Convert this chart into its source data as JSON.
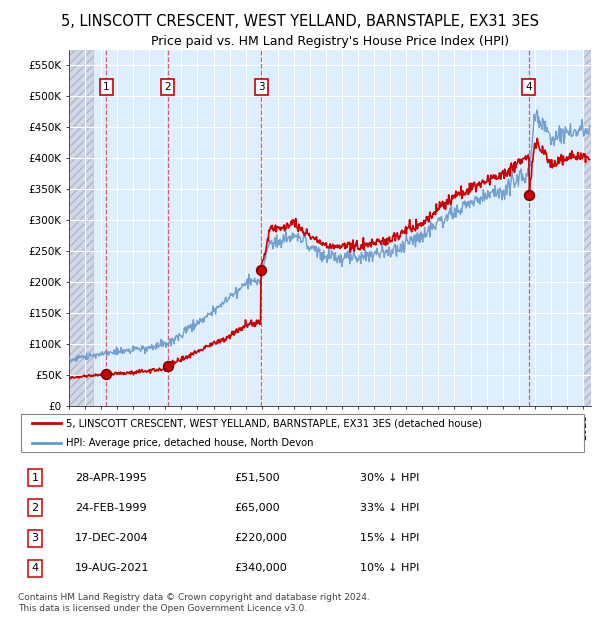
{
  "title": "5, LINSCOTT CRESCENT, WEST YELLAND, BARNSTAPLE, EX31 3ES",
  "subtitle": "Price paid vs. HM Land Registry's House Price Index (HPI)",
  "ylim": [
    0,
    575000
  ],
  "yticks": [
    0,
    50000,
    100000,
    150000,
    200000,
    250000,
    300000,
    350000,
    400000,
    450000,
    500000,
    550000
  ],
  "ytick_labels": [
    "£0",
    "£50K",
    "£100K",
    "£150K",
    "£200K",
    "£250K",
    "£300K",
    "£350K",
    "£400K",
    "£450K",
    "£500K",
    "£550K"
  ],
  "xlim_start": 1993.0,
  "xlim_end": 2025.5,
  "hatch_left_end": 1994.5,
  "hatch_right_start": 2025.0,
  "background_color": "#ffffff",
  "plot_bg_color": "#ddeeff",
  "grid_color": "#ffffff",
  "sale_dates": [
    1995.32,
    1999.15,
    2004.96,
    2021.63
  ],
  "sale_prices": [
    51500,
    65000,
    220000,
    340000
  ],
  "sale_labels": [
    "1",
    "2",
    "3",
    "4"
  ],
  "red_line_color": "#cc0000",
  "blue_line_color": "#6699cc",
  "dot_color": "#cc0000",
  "dot_edge_color": "#800000",
  "legend_red_label": "5, LINSCOTT CRESCENT, WEST YELLAND, BARNSTAPLE, EX31 3ES (detached house)",
  "legend_blue_label": "HPI: Average price, detached house, North Devon",
  "table_entries": [
    {
      "num": "1",
      "date": "28-APR-1995",
      "price": "£51,500",
      "hpi": "30% ↓ HPI"
    },
    {
      "num": "2",
      "date": "24-FEB-1999",
      "price": "£65,000",
      "hpi": "33% ↓ HPI"
    },
    {
      "num": "3",
      "date": "17-DEC-2004",
      "price": "£220,000",
      "hpi": "15% ↓ HPI"
    },
    {
      "num": "4",
      "date": "19-AUG-2021",
      "price": "£340,000",
      "hpi": "10% ↓ HPI"
    }
  ],
  "footer": "Contains HM Land Registry data © Crown copyright and database right 2024.\nThis data is licensed under the Open Government Licence v3.0.",
  "title_fontsize": 10.5,
  "subtitle_fontsize": 9,
  "tick_fontsize": 7.5
}
